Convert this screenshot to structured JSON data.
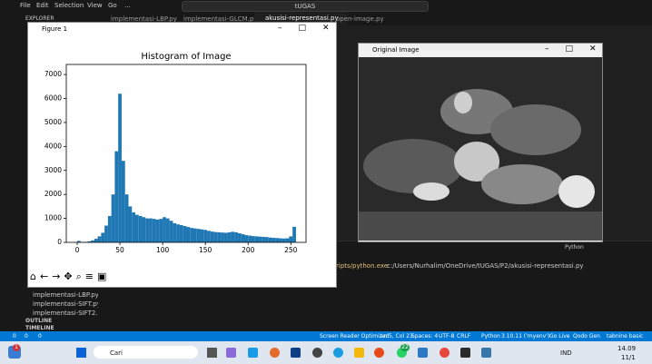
{
  "ui": {
    "menu": [
      "File",
      "Edit",
      "Selection",
      "View",
      "Go",
      "..."
    ],
    "search": "tUGAS",
    "explorer": "EXPLORER",
    "tabs": [
      "implementasi-LBP.py",
      "implementasi-GLCM.py",
      "akusisi-representasi.py",
      "open-image.py"
    ],
    "files": [
      "implementasi-LBP.py",
      "implementasi-SIFT.py",
      "implementasi-SIFT2.py"
    ],
    "outline": "OUTLINE",
    "timeline": "TIMELINE",
    "terminal_kind": "Python",
    "terminal_cmd": "ripts/python.exe",
    "terminal_arg": "c:/Users/Nurhalim/OneDrive/tUGAS/P2/akusisi-representasi.py",
    "status_errors": "0",
    "status_warnings": "0",
    "status_ports": "0",
    "status": [
      "Screen Reader Optimized",
      "Ln 5, Col 23",
      "Spaces: 4",
      "UTF-8",
      "CRLF",
      "Python",
      "3.10.11 ('myenv')",
      "Go Live",
      "Qodo Gen",
      "tabnine basic"
    ],
    "figure_title": "Figure 1",
    "image_title": "Original Image",
    "taskbar_search": "Cari",
    "badge_start": "1",
    "badge_whatsapp": "22",
    "lang": "IND",
    "time": "14.09",
    "date": "11/1"
  },
  "chart_data": {
    "type": "histogram",
    "title": "Histogram of Image",
    "color": "#1f77b4",
    "bins": [
      0,
      4,
      8,
      12,
      16,
      20,
      24,
      28,
      32,
      36,
      40,
      44,
      48,
      52,
      56,
      60,
      64,
      68,
      72,
      76,
      80,
      84,
      88,
      92,
      96,
      100,
      104,
      108,
      112,
      116,
      120,
      124,
      128,
      132,
      136,
      140,
      144,
      148,
      152,
      156,
      160,
      164,
      168,
      172,
      176,
      180,
      184,
      188,
      192,
      196,
      200,
      204,
      208,
      212,
      216,
      220,
      224,
      228,
      232,
      236,
      240,
      244,
      248,
      252,
      256
    ],
    "values": [
      60,
      10,
      20,
      40,
      80,
      150,
      250,
      400,
      700,
      1100,
      2000,
      3800,
      6200,
      3400,
      2000,
      1500,
      1250,
      1150,
      1100,
      1050,
      1000,
      1000,
      980,
      950,
      980,
      1050,
      1000,
      900,
      800,
      750,
      720,
      680,
      640,
      600,
      580,
      560,
      540,
      520,
      480,
      450,
      430,
      420,
      410,
      400,
      420,
      440,
      420,
      380,
      340,
      300,
      280,
      260,
      250,
      240,
      230,
      220,
      200,
      190,
      180,
      170,
      160,
      170,
      250,
      650
    ],
    "xlim": [
      -12.75,
      267.75
    ],
    "ylim": [
      0,
      7420
    ],
    "xticks": [
      0,
      50,
      100,
      150,
      200,
      250
    ],
    "yticks": [
      0,
      1000,
      2000,
      3000,
      4000,
      5000,
      6000,
      7000
    ]
  }
}
